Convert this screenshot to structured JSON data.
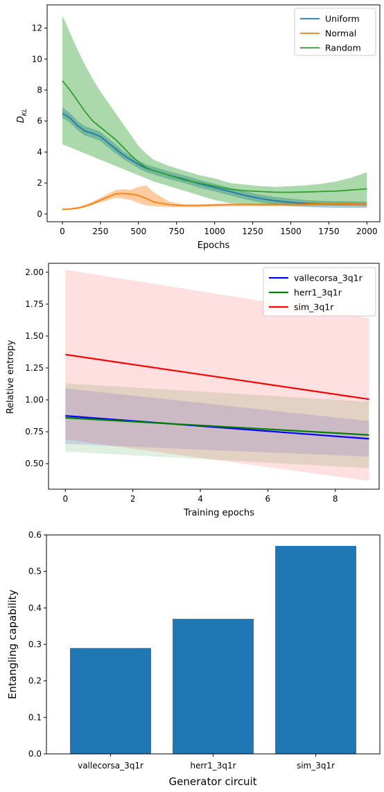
{
  "chart_data": [
    {
      "type": "line",
      "xlabel": "Epochs",
      "ylabel_main": "D",
      "ylabel_sub": "KL",
      "xlim": [
        -100,
        2085
      ],
      "ylim": [
        -0.5,
        13.5
      ],
      "xticks": [
        0,
        250,
        500,
        750,
        1000,
        1250,
        1500,
        1750,
        2000
      ],
      "yticks": [
        0,
        2,
        4,
        6,
        8,
        10,
        12
      ],
      "legend_position": "top-right",
      "series": [
        {
          "name": "Uniform",
          "color": "#1f77b4",
          "x": [
            0,
            50,
            100,
            150,
            200,
            250,
            300,
            350,
            400,
            450,
            500,
            550,
            600,
            700,
            800,
            900,
            1000,
            1100,
            1200,
            1300,
            1400,
            1500,
            1600,
            1700,
            1800,
            1900,
            2000
          ],
          "y": [
            6.5,
            6.2,
            5.7,
            5.35,
            5.2,
            5.0,
            4.6,
            4.2,
            3.8,
            3.5,
            3.2,
            2.95,
            2.8,
            2.5,
            2.25,
            1.95,
            1.7,
            1.45,
            1.2,
            1.0,
            0.85,
            0.75,
            0.68,
            0.65,
            0.63,
            0.62,
            0.6
          ],
          "lower": [
            6.2,
            5.9,
            5.4,
            5.05,
            4.9,
            4.7,
            4.3,
            3.9,
            3.55,
            3.25,
            2.95,
            2.7,
            2.55,
            2.25,
            2.0,
            1.7,
            1.45,
            1.2,
            0.95,
            0.75,
            0.6,
            0.5,
            0.45,
            0.42,
            0.4,
            0.4,
            0.4
          ],
          "upper": [
            6.9,
            6.5,
            6.0,
            5.65,
            5.5,
            5.3,
            4.9,
            4.5,
            4.05,
            3.75,
            3.45,
            3.2,
            3.05,
            2.75,
            2.5,
            2.2,
            1.95,
            1.7,
            1.45,
            1.25,
            1.1,
            1.0,
            0.9,
            0.85,
            0.83,
            0.82,
            0.8
          ]
        },
        {
          "name": "Normal",
          "color": "#ff7f0e",
          "x": [
            0,
            50,
            100,
            150,
            200,
            250,
            300,
            350,
            400,
            450,
            500,
            550,
            600,
            700,
            800,
            900,
            1000,
            1100,
            1200,
            1300,
            1400,
            1500,
            1600,
            1700,
            1800,
            1900,
            2000
          ],
          "y": [
            0.3,
            0.32,
            0.38,
            0.5,
            0.68,
            0.9,
            1.1,
            1.3,
            1.32,
            1.28,
            1.2,
            1.0,
            0.78,
            0.6,
            0.55,
            0.55,
            0.58,
            0.6,
            0.6,
            0.6,
            0.6,
            0.6,
            0.62,
            0.65,
            0.65,
            0.63,
            0.6
          ],
          "lower": [
            0.25,
            0.27,
            0.32,
            0.42,
            0.58,
            0.75,
            0.9,
            1.05,
            1.0,
            0.9,
            0.7,
            0.55,
            0.5,
            0.45,
            0.45,
            0.45,
            0.48,
            0.5,
            0.5,
            0.5,
            0.5,
            0.5,
            0.52,
            0.55,
            0.55,
            0.52,
            0.5
          ],
          "upper": [
            0.35,
            0.38,
            0.45,
            0.6,
            0.8,
            1.05,
            1.3,
            1.55,
            1.6,
            1.55,
            1.75,
            1.85,
            1.4,
            0.8,
            0.62,
            0.62,
            0.65,
            0.68,
            0.68,
            0.68,
            0.7,
            0.72,
            0.74,
            0.76,
            0.76,
            0.75,
            0.72
          ]
        },
        {
          "name": "Random",
          "color": "#2ca02c",
          "x": [
            0,
            50,
            100,
            150,
            200,
            250,
            300,
            350,
            400,
            450,
            500,
            550,
            600,
            700,
            800,
            900,
            1000,
            1100,
            1200,
            1300,
            1400,
            1500,
            1600,
            1700,
            1800,
            1900,
            2000
          ],
          "y": [
            8.6,
            8.0,
            7.3,
            6.6,
            6.0,
            5.6,
            5.2,
            4.8,
            4.3,
            3.8,
            3.35,
            3.0,
            2.8,
            2.5,
            2.2,
            2.0,
            1.8,
            1.6,
            1.5,
            1.45,
            1.4,
            1.4,
            1.42,
            1.45,
            1.48,
            1.55,
            1.62
          ],
          "lower": [
            4.5,
            4.3,
            4.1,
            3.9,
            3.7,
            3.5,
            3.3,
            3.1,
            2.9,
            2.7,
            2.5,
            2.3,
            2.1,
            1.8,
            1.5,
            1.2,
            0.9,
            0.7,
            0.6,
            0.55,
            0.55,
            0.55,
            0.55,
            0.55,
            0.55,
            0.55,
            0.55
          ],
          "upper": [
            12.8,
            11.7,
            10.6,
            9.6,
            8.7,
            7.9,
            7.2,
            6.5,
            5.8,
            5.1,
            4.4,
            3.9,
            3.5,
            3.1,
            2.8,
            2.5,
            2.3,
            2.0,
            1.9,
            1.8,
            1.75,
            1.8,
            1.85,
            1.95,
            2.1,
            2.35,
            2.7
          ]
        }
      ]
    },
    {
      "type": "line",
      "xlabel": "Training epochs",
      "ylabel": "Relative entropy",
      "xlim": [
        -0.5,
        9.3
      ],
      "ylim": [
        0.3,
        2.07
      ],
      "xticks": [
        0,
        2,
        4,
        6,
        8
      ],
      "yticks": [
        0.5,
        0.75,
        1.0,
        1.25,
        1.5,
        1.75,
        2.0
      ],
      "legend_position": "top-right",
      "series": [
        {
          "name": "vallecorsa_3q1r",
          "color": "#0000ff",
          "x": [
            0,
            9
          ],
          "y": [
            0.875,
            0.695
          ],
          "lower": [
            0.655,
            0.555
          ],
          "upper": [
            1.09,
            0.835
          ]
        },
        {
          "name": "herr1_3q1r",
          "color": "#008000",
          "x": [
            0,
            9
          ],
          "y": [
            0.86,
            0.725
          ],
          "lower": [
            0.595,
            0.465
          ],
          "upper": [
            1.13,
            0.985
          ]
        },
        {
          "name": "sim_3q1r",
          "color": "#ff0000",
          "x": [
            0,
            9
          ],
          "y": [
            1.355,
            1.005
          ],
          "lower": [
            0.69,
            0.365
          ],
          "upper": [
            2.02,
            1.64
          ]
        }
      ]
    },
    {
      "type": "bar",
      "xlabel": "Generator circuit",
      "ylabel": "Entangling capability",
      "ylim": [
        0,
        0.6
      ],
      "yticks": [
        0.0,
        0.1,
        0.2,
        0.3,
        0.4,
        0.5,
        0.6
      ],
      "categories": [
        "vallecorsa_3q1r",
        "herr1_3q1r",
        "sim_3q1r"
      ],
      "values": [
        0.29,
        0.37,
        0.57
      ],
      "color": "#1f77b4"
    }
  ]
}
